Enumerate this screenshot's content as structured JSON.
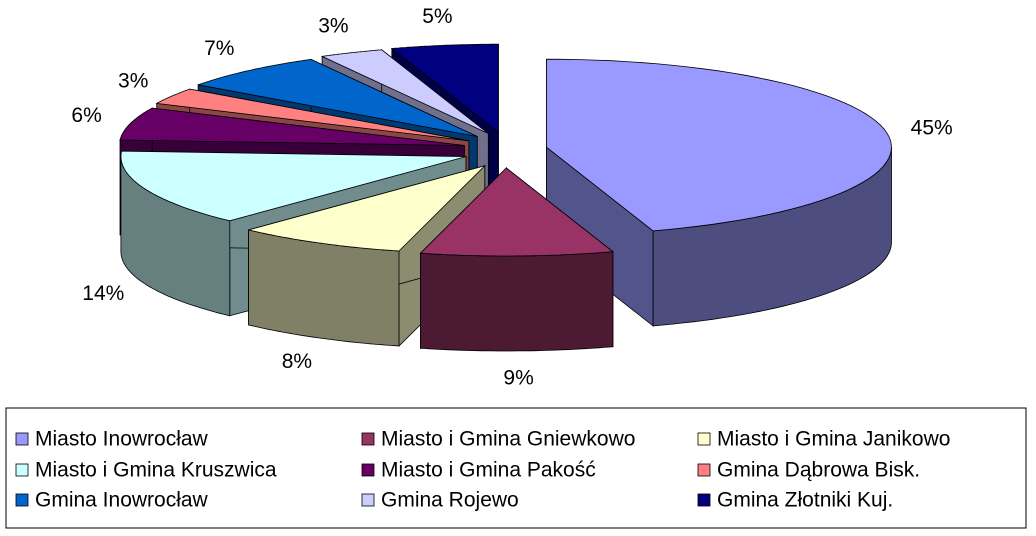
{
  "chart_data": {
    "type": "pie3d",
    "categories": [
      "Miasto Inowrocław",
      "Miasto i Gmina Gniewkowo",
      "Miasto i Gmina Janikowo",
      "Miasto i Gmina Kruszwica",
      "Miasto i Gmina Pakość",
      "Gmina Dąbrowa Bisk.",
      "Gmina Inowrocław",
      "Gmina Rojewo",
      "Gmina Złotniki Kuj."
    ],
    "values": [
      45,
      9,
      8,
      14,
      6,
      3,
      7,
      3,
      5
    ],
    "value_labels": [
      "45%",
      "9%",
      "8%",
      "14%",
      "6%",
      "3%",
      "7%",
      "3%",
      "5%"
    ],
    "colors": [
      "#9999ff",
      "#993366",
      "#ffffcc",
      "#ccffff",
      "#660066",
      "#ff8080",
      "#0066cc",
      "#ccccff",
      "#000080"
    ],
    "legend": "bottom"
  }
}
